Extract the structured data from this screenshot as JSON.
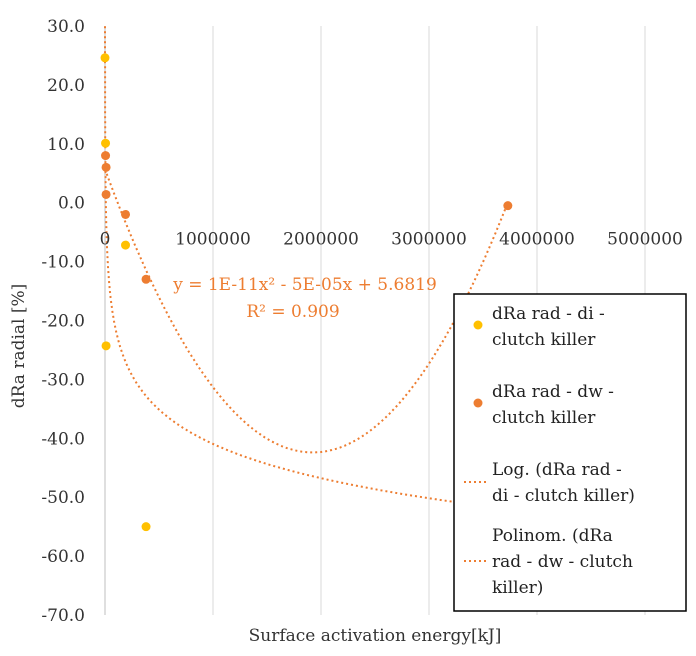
{
  "chart_data": {
    "type": "scatter",
    "xlabel": "Surface activation energy[kJ]",
    "ylabel": "dRa radial [%]",
    "xlim": [
      0,
      5000000
    ],
    "ylim": [
      -70,
      30
    ],
    "x_ticks": [
      0,
      1000000,
      2000000,
      3000000,
      4000000,
      5000000
    ],
    "x_tick_labels": [
      "0",
      "1000000",
      "2000000",
      "3000000",
      "4000000",
      "5000000"
    ],
    "y_ticks": [
      30,
      20,
      10,
      0,
      -10,
      -20,
      -30,
      -40,
      -50,
      -60,
      -70
    ],
    "y_tick_labels": [
      "30.0",
      "20.0",
      "10.0",
      "0.0",
      "-10.0",
      "-20.0",
      "-30.0",
      "-40.0",
      "-50.0",
      "-60.0",
      "-70.0"
    ],
    "grid": {
      "vertical": true,
      "horizontal": false
    },
    "legend_position": "right",
    "series": [
      {
        "name": "dRa rad - di - clutch killer",
        "color": "#ffc000",
        "points": [
          {
            "x": 0,
            "y": 24.6
          },
          {
            "x": 5000,
            "y": 10.1
          },
          {
            "x": 10000,
            "y": -24.3
          },
          {
            "x": 190000,
            "y": -7.2
          },
          {
            "x": 380000,
            "y": -55.0
          }
        ]
      },
      {
        "name": "dRa rad - dw - clutch killer",
        "color": "#ed7d31",
        "points": [
          {
            "x": 5000,
            "y": 8.0
          },
          {
            "x": 10000,
            "y": 6.0
          },
          {
            "x": 10000,
            "y": 1.4
          },
          {
            "x": 190000,
            "y": -2.0
          },
          {
            "x": 380000,
            "y": -13.0
          },
          {
            "x": 3730000,
            "y": -0.5
          }
        ]
      }
    ],
    "trendlines": [
      {
        "name": "Log. (dRa rad - di - clutch killer)",
        "type": "logarithmic",
        "color": "#ed7d31",
        "a": 75.1,
        "b": -8.4
      },
      {
        "name": "Polinom. (dRa rad - dw - clutch killer)",
        "type": "polynomial",
        "color": "#ed7d31",
        "coefficients": [
          5.6819,
          -5e-05,
          1.3e-11
        ]
      }
    ],
    "annotations": {
      "equation": "y = 1E-11x² - 5E-05x + 5.6819",
      "r2": "R² = 0.909"
    },
    "legend_entries": [
      {
        "lines": [
          "dRa rad - di -",
          "clutch killer"
        ],
        "kind": "marker",
        "color": "#ffc000"
      },
      {
        "lines": [
          "dRa rad - dw -",
          "clutch killer"
        ],
        "kind": "marker",
        "color": "#ed7d31"
      },
      {
        "lines": [
          "Log. (dRa rad -",
          "di - clutch killer)"
        ],
        "kind": "line",
        "color": "#ed7d31"
      },
      {
        "lines": [
          "Polinom. (dRa",
          "rad - dw - clutch",
          "killer)"
        ],
        "kind": "line",
        "color": "#ed7d31"
      }
    ]
  }
}
